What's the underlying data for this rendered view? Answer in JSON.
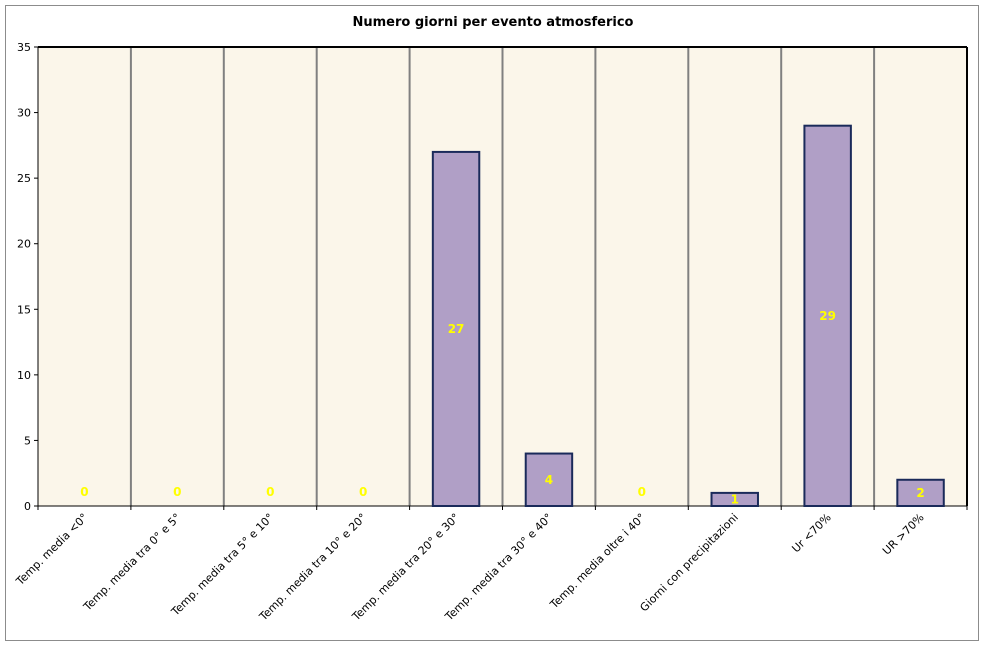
{
  "chart_data": {
    "type": "bar",
    "title": "Numero giorni per evento atmosferico",
    "categories": [
      "Temp. media <0°",
      "Temp. media tra 0° e 5°",
      "Temp. media tra 5° e 10°",
      "Temp. media tra 10° e 20°",
      "Temp. media tra 20° e 30°",
      "Temp. media tra 30° e 40°",
      "Temp. media oltre i 40°",
      "Giorni con precipitazioni",
      "Ur <70%",
      "UR >70%"
    ],
    "values": [
      0,
      0,
      0,
      0,
      27,
      4,
      0,
      1,
      29,
      2
    ],
    "ylim": [
      0,
      35
    ],
    "yticks": [
      0,
      5,
      10,
      15,
      20,
      25,
      30,
      35
    ],
    "grid": "vertical",
    "legend": "none",
    "colors": {
      "plot_background": "#fbf6ea",
      "bar_fill": "#b09fc6",
      "bar_stroke": "#1a2a5a",
      "gridline": "#808080",
      "data_label": "#ffff00"
    }
  }
}
